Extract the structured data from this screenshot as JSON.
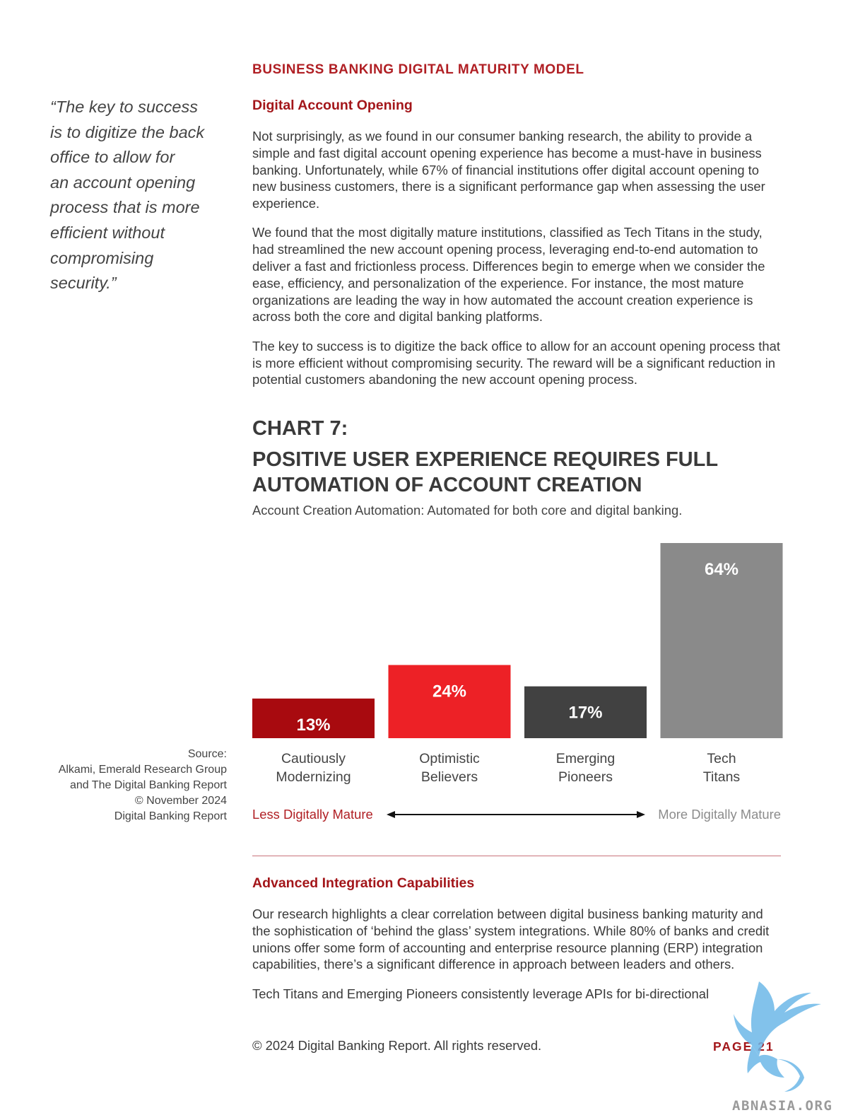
{
  "header": {
    "text": "BUSINESS BANKING DIGITAL MATURITY MODEL"
  },
  "pull_quote": {
    "lines": [
      "“The key to success",
      "is to digitize the back",
      "office to allow for",
      "an account opening",
      "process that is more",
      "efficient without",
      "compromising",
      "security.”"
    ]
  },
  "section1": {
    "title": "Digital Account Opening",
    "paragraphs": [
      "Not surprisingly, as we found in our consumer banking research, the ability to provide a simple and fast digital account opening experience has become a must-have in business banking. Unfortunately, while 67% of financial institutions offer digital account opening to new business customers, there is a significant performance gap when assessing the user experience.",
      "We found that the most digitally mature institutions, classified as Tech Titans in the study, had streamlined the new account opening process, leveraging end-to-end automation to deliver a fast and frictionless process. Differences begin to emerge when we consider the ease, efficiency, and personalization of the experience. For instance, the most mature organizations are leading the way in how automated the account creation experience is across both the core and digital banking platforms.",
      "The key to success is to digitize the back office to allow for an account opening process that is more efficient without compromising security. The reward will be a significant reduction in potential customers abandoning the new account opening process."
    ]
  },
  "chart_heading": {
    "label": "CHART 7:",
    "title": "POSITIVE USER EXPERIENCE REQUIRES FULL AUTOMATION OF ACCOUNT CREATION",
    "subtitle": "Account Creation Automation: Automated for both core and digital banking."
  },
  "chart_data": {
    "type": "bar",
    "title": "POSITIVE USER EXPERIENCE REQUIRES FULL AUTOMATION OF ACCOUNT CREATION",
    "subtitle": "Account Creation Automation: Automated for both core and digital banking.",
    "categories": [
      [
        "Cautiously",
        "Modernizing"
      ],
      [
        "Optimistic",
        "Believers"
      ],
      [
        "Emerging",
        "Pioneers"
      ],
      [
        "Tech",
        "Titans"
      ]
    ],
    "values": [
      13,
      24,
      17,
      64
    ],
    "value_labels": [
      "13%",
      "24%",
      "17%",
      "64%"
    ],
    "colors": [
      "#a80a0f",
      "#ed2126",
      "#414141",
      "#8a8a8a"
    ],
    "axis_left_label": "Less Digitally Mature",
    "axis_right_label": "More Digitally Mature",
    "axis_left_color": "#b01f24",
    "axis_right_color": "#8c8c8c",
    "grid": false,
    "ylim": [
      0,
      64
    ]
  },
  "source": {
    "lines": [
      "Source:",
      "Alkami, Emerald Research Group",
      "and The Digital Banking Report",
      "© November 2024",
      "Digital Banking Report"
    ]
  },
  "section2": {
    "title": "Advanced Integration Capabilities",
    "paragraphs": [
      "Our research highlights a clear correlation between digital business banking maturity and the sophistication of ‘behind the glass’ system integrations. While 80% of banks and credit unions offer some form of accounting and enterprise resource planning (ERP) integration capabilities, there’s a significant difference in approach between leaders and others.",
      "Tech Titans and Emerging Pioneers consistently leverage APIs for bi-directional"
    ]
  },
  "footer": {
    "copyright": "© 2024 Digital Banking Report. All rights reserved.",
    "page": "PAGE 21"
  },
  "watermark": {
    "text": "ABNASIA.ORG",
    "color": "#6db8e8"
  }
}
